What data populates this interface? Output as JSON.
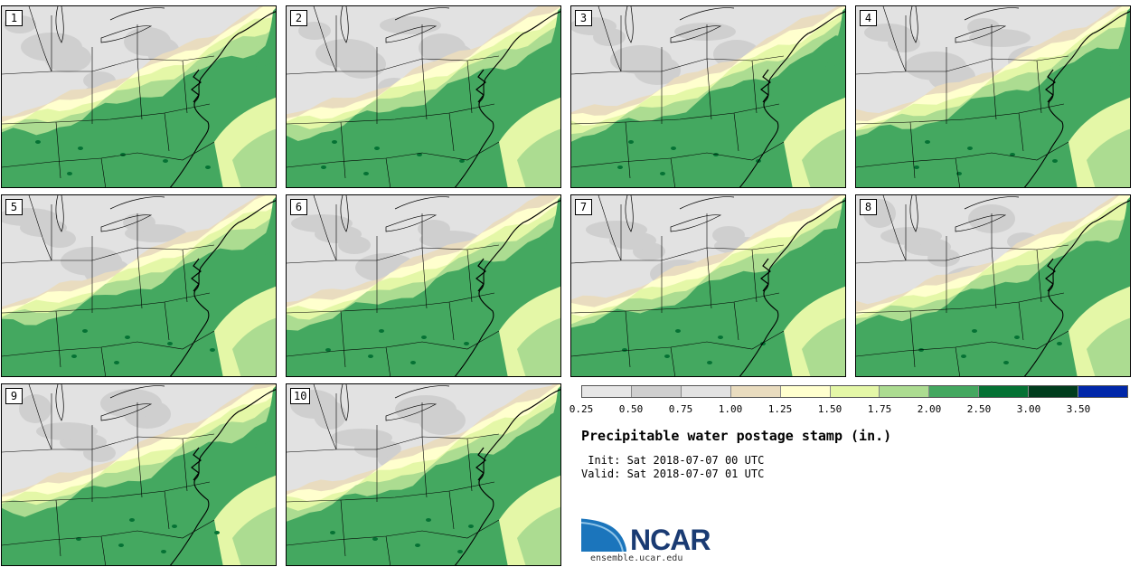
{
  "colors": {
    "bin1": "#e6e6e6",
    "bin2": "#cfcfcf",
    "bin3": "#e2e2e2",
    "bin4": "#e9dcbf",
    "bin5": "#ffffce",
    "bin6": "#e4f7a7",
    "bin7": "#acdc91",
    "bin8": "#44a860",
    "bin9": "#057234",
    "bin10": "#003d1d",
    "bin11": "#0027a9",
    "outline": "#000000"
  },
  "panels": [
    {
      "label": "1"
    },
    {
      "label": "2"
    },
    {
      "label": "3"
    },
    {
      "label": "4"
    },
    {
      "label": "5"
    },
    {
      "label": "6"
    },
    {
      "label": "7"
    },
    {
      "label": "8"
    },
    {
      "label": "9"
    },
    {
      "label": "10"
    }
  ],
  "legend": {
    "ticks": [
      "0.25",
      "0.50",
      "0.75",
      "1.00",
      "1.25",
      "1.50",
      "1.75",
      "2.00",
      "2.50",
      "3.00",
      "3.50"
    ],
    "swatches": [
      "bin1",
      "bin2",
      "bin3",
      "bin4",
      "bin5",
      "bin6",
      "bin7",
      "bin8",
      "bin9",
      "bin10",
      "bin11"
    ]
  },
  "title": "Precipitable water postage stamp (in.)",
  "init": " Init: Sat 2018-07-07 00 UTC",
  "valid": "Valid: Sat 2018-07-07 01 UTC",
  "logo": {
    "word": "NCAR",
    "url": "ensemble.ucar.edu"
  }
}
